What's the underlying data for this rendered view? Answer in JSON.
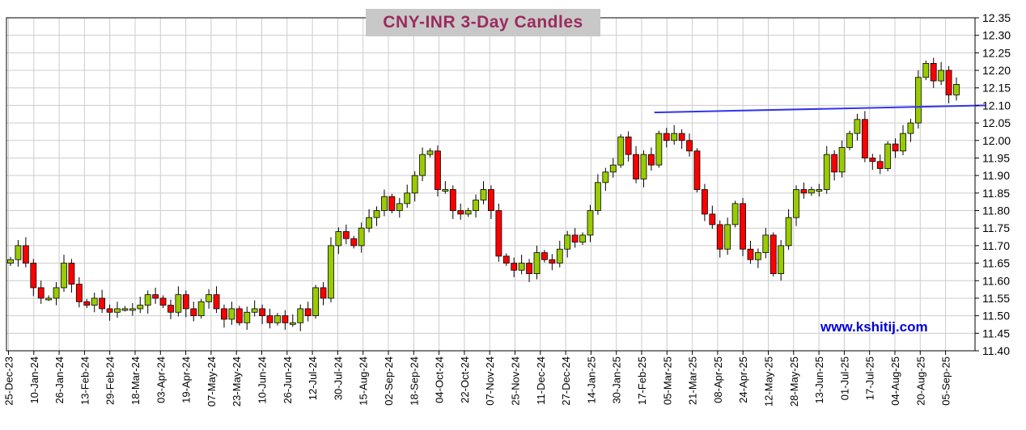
{
  "chart_data": {
    "type": "candlestick",
    "title": "CNY-INR  3-Day Candles",
    "watermark": "www.kshitij.com",
    "ylim": [
      11.4,
      12.35
    ],
    "y_ticks": [
      "12.35",
      "12.30",
      "12.25",
      "12.20",
      "12.15",
      "12.10",
      "12.05",
      "12.00",
      "11.95",
      "11.90",
      "11.85",
      "11.80",
      "11.75",
      "11.70",
      "11.65",
      "11.60",
      "11.55",
      "11.50",
      "11.45",
      "11.40"
    ],
    "x_ticks": [
      "25-Dec-23",
      "10-Jan-24",
      "26-Jan-24",
      "13-Feb-24",
      "29-Feb-24",
      "18-Mar-24",
      "03-Apr-24",
      "19-Apr-24",
      "07-May-24",
      "23-May-24",
      "10-Jun-24",
      "26-Jun-24",
      "12-Jul-24",
      "30-Jul-24",
      "15-Aug-24",
      "02-Sep-24",
      "18-Sep-24",
      "04-Oct-24",
      "22-Oct-24",
      "07-Nov-24",
      "25-Nov-24",
      "11-Dec-24",
      "27-Dec-24",
      "14-Jan-25",
      "30-Jan-25",
      "17-Feb-25",
      "05-Mar-25",
      "21-Mar-25",
      "08-Apr-25",
      "24-Apr-25",
      "12-May-25",
      "28-May-25",
      "13-Jun-25",
      "01-Jul-25",
      "17-Jul-25",
      "04-Aug-25",
      "20-Aug-25",
      "05-Sep-25"
    ],
    "grid": true,
    "colors": {
      "up": "#99cc00",
      "down": "#ff0000",
      "trendline": "#3333ee",
      "title_bg": "#c8c8c8",
      "title_text": "#9b2b5e",
      "watermark": "#0000dd"
    },
    "trendline": {
      "from": [
        25.5,
        12.08
      ],
      "to": [
        38.6,
        12.1
      ]
    },
    "closes": [
      11.66,
      11.7,
      11.65,
      11.58,
      11.55,
      11.55,
      11.58,
      11.65,
      11.59,
      11.54,
      11.53,
      11.55,
      11.52,
      11.51,
      11.52,
      11.52,
      11.52,
      11.53,
      11.56,
      11.55,
      11.53,
      11.51,
      11.56,
      11.52,
      11.5,
      11.54,
      11.56,
      11.52,
      11.49,
      11.52,
      11.48,
      11.51,
      11.52,
      11.5,
      11.48,
      11.5,
      11.48,
      11.48,
      11.52,
      11.5,
      11.58,
      11.55,
      11.7,
      11.74,
      11.72,
      11.7,
      11.75,
      11.78,
      11.8,
      11.84,
      11.8,
      11.82,
      11.85,
      11.9,
      11.96,
      11.97,
      11.86,
      11.86,
      11.8,
      11.79,
      11.8,
      11.83,
      11.86,
      11.8,
      11.67,
      11.65,
      11.63,
      11.65,
      11.62,
      11.68,
      11.66,
      11.65,
      11.69,
      11.73,
      11.71,
      11.73,
      11.8,
      11.88,
      11.91,
      11.93,
      12.01,
      11.96,
      11.89,
      11.96,
      11.93,
      12.02,
      12.0,
      12.02,
      12.0,
      11.97,
      11.86,
      11.79,
      11.76,
      11.69,
      11.76,
      11.82,
      11.69,
      11.66,
      11.68,
      11.73,
      11.62,
      11.7,
      11.78,
      11.86,
      11.85,
      11.86,
      11.86,
      11.96,
      11.91,
      11.98,
      12.02,
      12.06,
      11.95,
      11.94,
      11.92,
      11.99,
      11.97,
      12.02,
      12.05,
      12.18,
      12.22,
      12.17,
      12.2,
      12.13,
      12.16
    ]
  }
}
